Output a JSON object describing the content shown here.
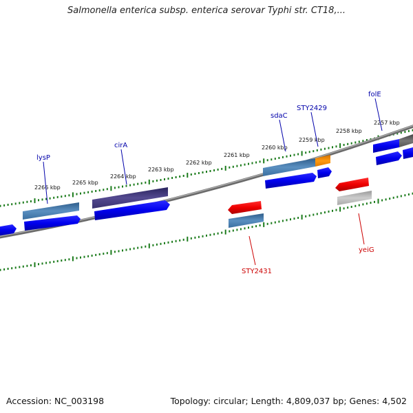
{
  "title": "Salmonella enterica subsp. enterica serovar Typhi str. CT18,...",
  "footer": {
    "accession": "Accession: NC_003198",
    "topology": "Topology: circular; Length: 4,809,037 bp; Genes: 4,502"
  },
  "colors": {
    "forward_cds": "#0000ee",
    "reverse_cds": "#ee0000",
    "forward_label": "#0000aa",
    "reverse_label": "#cc0000",
    "tick": "#1a7a1a",
    "backbone": "#777777"
  },
  "scale_labels": [
    "2266 kbp",
    "2265 kbp",
    "2264 kbp",
    "2263 kbp",
    "2262 kbp",
    "2261 kbp",
    "2260 kbp",
    "2259 kbp",
    "2258 kbp",
    "2257 kbp"
  ],
  "gene_labels": {
    "forward": [
      "lysP",
      "cirA",
      "sdaC",
      "STY2429",
      "folE"
    ],
    "reverse": [
      "STY2431",
      "yeiG"
    ]
  }
}
